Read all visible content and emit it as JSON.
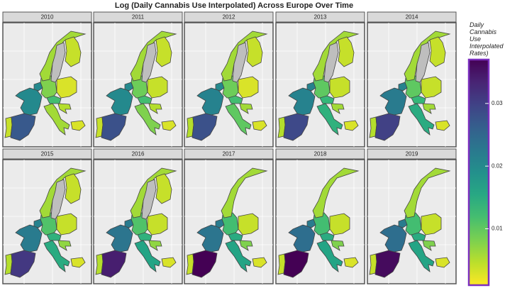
{
  "chart_data": {
    "type": "choropleth-facets",
    "title": "Log (Daily Cannabis Use Interpolated) Across Europe Over Time",
    "legend_title": "Daily Cannabis Use Interpolated Rates)",
    "colormap": "viridis",
    "na_color": "#bebebe",
    "clim": [
      0.001,
      0.037
    ],
    "cticks": [
      0.01,
      0.02,
      0.03
    ],
    "facets": [
      {
        "label": "2010",
        "values": [
          0.004,
          0.027,
          0.02,
          0.02,
          0.008,
          0.012,
          0.003,
          0.006,
          0.005,
          0.003,
          0.006,
          null,
          0.004
        ]
      },
      {
        "label": "2011",
        "values": [
          0.004,
          0.028,
          0.02,
          0.02,
          0.009,
          0.012,
          0.004,
          0.008,
          0.005,
          0.003,
          0.006,
          null,
          0.004
        ]
      },
      {
        "label": "2012",
        "values": [
          0.005,
          0.028,
          0.021,
          0.02,
          0.009,
          0.012,
          0.003,
          0.01,
          0.006,
          0.003,
          0.006,
          null,
          0.004
        ]
      },
      {
        "label": "2013",
        "values": [
          0.005,
          0.029,
          0.021,
          0.021,
          0.01,
          0.013,
          0.004,
          0.014,
          0.006,
          0.003,
          0.006,
          null,
          0.004
        ]
      },
      {
        "label": "2014",
        "values": [
          0.005,
          0.03,
          0.022,
          0.021,
          0.01,
          0.013,
          0.004,
          0.015,
          0.006,
          0.003,
          0.006,
          null,
          0.004
        ]
      },
      {
        "label": "2015",
        "values": [
          0.005,
          0.031,
          0.022,
          0.021,
          0.011,
          0.014,
          0.004,
          0.015,
          0.007,
          0.003,
          0.006,
          null,
          0.004
        ]
      },
      {
        "label": "2016",
        "values": [
          0.005,
          0.034,
          0.023,
          0.022,
          0.011,
          0.014,
          0.004,
          0.016,
          0.007,
          0.003,
          0.006,
          null,
          0.004
        ]
      },
      {
        "label": "2017",
        "values": [
          0.004,
          0.037,
          0.023,
          0.022,
          0.012,
          0.015,
          0.004,
          0.016,
          0.008,
          0.003,
          0.006
        ]
      },
      {
        "label": "2018",
        "values": [
          0.004,
          0.037,
          0.024,
          0.022,
          0.012,
          0.015,
          0.004,
          0.016,
          0.008,
          0.003,
          0.006
        ]
      },
      {
        "label": "2019",
        "values": [
          0.004,
          0.036,
          0.024,
          0.022,
          0.012,
          0.015,
          0.004,
          0.016,
          0.008,
          0.003,
          0.006
        ]
      }
    ]
  }
}
